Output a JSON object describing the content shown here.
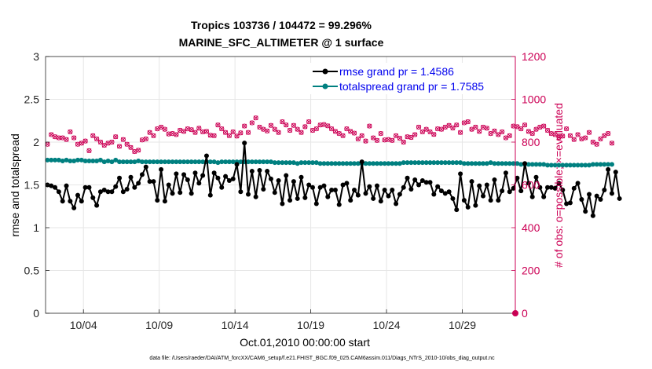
{
  "figure": {
    "title_line1": "Tropics 103736 / 104472 = 99.296%",
    "title_line2": "MARINE_SFC_ALTIMETER @ 1 surface",
    "footnote": "data file: /Users/raeder/DAI/ATM_forcXX/CAM6_setup/f.e21.FHIST_BGC.f09_025.CAM6assim.011/Diags_NTrS_2010-10/obs_diag_output.nc"
  },
  "chart_data": {
    "type": "line",
    "xlabel": "Oct.01,2010 00:00:00 start",
    "ylabel_left": "rmse and totalspread",
    "ylabel_right": "# of obs: o=possible; ×=evaluated",
    "xlim": [
      1,
      32
    ],
    "ylim_left": [
      0,
      3
    ],
    "ylim_right": [
      0,
      1200
    ],
    "x_ticks": [
      3.5,
      8.5,
      13.5,
      18.5,
      23.5,
      28.5
    ],
    "x_tick_labels": [
      "10/04",
      "10/09",
      "10/14",
      "10/19",
      "10/24",
      "10/29"
    ],
    "y_ticks_left": [
      0,
      0.5,
      1,
      1.5,
      2,
      2.5,
      3
    ],
    "y_tick_labels_left": [
      "0",
      "0.5",
      "1",
      "1.5",
      "2",
      "2.5",
      "3"
    ],
    "y_ticks_right": [
      0,
      200,
      400,
      600,
      800,
      1000,
      1200
    ],
    "y_tick_labels_right": [
      "0",
      "200",
      "400",
      "600",
      "800",
      "1000",
      "1200"
    ],
    "grid": true,
    "legend_position": "top-right",
    "colors": {
      "rmse": "#000000",
      "totalspread": "#008080",
      "obs": "#cc0055",
      "grid": "#e6e6e6"
    },
    "series": [
      {
        "name": "rmse grand pr = 1.4586",
        "axis": "left",
        "x_start": 1.125,
        "x_step": 0.25,
        "values": [
          1.5,
          1.49,
          1.47,
          1.42,
          1.31,
          1.49,
          1.31,
          1.23,
          1.38,
          1.31,
          1.47,
          1.47,
          1.35,
          1.26,
          1.42,
          1.44,
          1.42,
          1.42,
          1.48,
          1.58,
          1.42,
          1.45,
          1.59,
          1.47,
          1.52,
          1.62,
          1.71,
          1.54,
          1.54,
          1.32,
          1.68,
          1.31,
          1.5,
          1.4,
          1.63,
          1.41,
          1.62,
          1.56,
          1.4,
          1.64,
          1.52,
          1.61,
          1.84,
          1.38,
          1.64,
          1.58,
          1.47,
          1.6,
          1.55,
          1.57,
          1.74,
          1.42,
          1.99,
          1.39,
          1.66,
          1.36,
          1.67,
          1.45,
          1.66,
          1.57,
          1.41,
          1.55,
          1.28,
          1.61,
          1.32,
          1.54,
          1.34,
          1.59,
          1.35,
          1.5,
          1.47,
          1.28,
          1.47,
          1.49,
          1.36,
          1.44,
          1.44,
          1.27,
          1.5,
          1.52,
          1.32,
          1.44,
          1.38,
          1.77,
          1.4,
          1.48,
          1.34,
          1.49,
          1.31,
          1.44,
          1.37,
          1.44,
          1.28,
          1.39,
          1.47,
          1.58,
          1.45,
          1.56,
          1.5,
          1.55,
          1.53,
          1.53,
          1.39,
          1.48,
          1.43,
          1.4,
          1.42,
          1.34,
          1.21,
          1.63,
          1.32,
          1.24,
          1.54,
          1.26,
          1.49,
          1.37,
          1.5,
          1.32,
          1.56,
          1.32,
          1.43,
          1.64,
          1.42,
          1.46,
          1.58,
          1.43,
          1.75,
          1.52,
          1.36,
          1.59,
          1.47,
          1.36,
          1.47,
          1.47,
          1.46,
          1.52,
          1.44,
          1.28,
          1.29,
          1.46,
          1.52,
          1.33,
          1.19,
          1.39,
          1.14,
          1.37,
          1.33,
          1.44,
          1.68,
          1.4,
          1.65,
          1.34
        ]
      },
      {
        "name": "totalspread grand pr = 1.7585",
        "axis": "left",
        "x_start": 1.125,
        "x_step": 0.25,
        "values": [
          1.79,
          1.79,
          1.79,
          1.79,
          1.78,
          1.79,
          1.78,
          1.78,
          1.79,
          1.79,
          1.78,
          1.78,
          1.78,
          1.78,
          1.79,
          1.77,
          1.78,
          1.77,
          1.79,
          1.77,
          1.77,
          1.77,
          1.77,
          1.77,
          1.78,
          1.77,
          1.77,
          1.77,
          1.77,
          1.77,
          1.77,
          1.77,
          1.77,
          1.77,
          1.77,
          1.77,
          1.77,
          1.77,
          1.77,
          1.77,
          1.77,
          1.77,
          1.77,
          1.77,
          1.77,
          1.76,
          1.77,
          1.77,
          1.77,
          1.77,
          1.77,
          1.77,
          1.77,
          1.77,
          1.77,
          1.77,
          1.77,
          1.77,
          1.77,
          1.77,
          1.76,
          1.76,
          1.76,
          1.76,
          1.76,
          1.76,
          1.75,
          1.76,
          1.76,
          1.76,
          1.76,
          1.76,
          1.75,
          1.75,
          1.75,
          1.75,
          1.75,
          1.75,
          1.75,
          1.75,
          1.75,
          1.75,
          1.75,
          1.75,
          1.75,
          1.75,
          1.75,
          1.75,
          1.75,
          1.75,
          1.75,
          1.75,
          1.75,
          1.75,
          1.76,
          1.76,
          1.76,
          1.76,
          1.76,
          1.76,
          1.76,
          1.76,
          1.76,
          1.76,
          1.76,
          1.76,
          1.76,
          1.76,
          1.76,
          1.76,
          1.75,
          1.75,
          1.75,
          1.75,
          1.75,
          1.75,
          1.75,
          1.76,
          1.75,
          1.75,
          1.75,
          1.75,
          1.75,
          1.75,
          1.75,
          1.74,
          1.74,
          1.74,
          1.74,
          1.74,
          1.74,
          1.74,
          1.73,
          1.73,
          1.73,
          1.73,
          1.73,
          1.73,
          1.73,
          1.73,
          1.73,
          1.73,
          1.73,
          1.73,
          1.74,
          1.74,
          1.74,
          1.74,
          1.74,
          1.74
        ]
      },
      {
        "name": "# of obs (possible / evaluated)",
        "axis": "right",
        "x_start": 1.125,
        "x_step": 0.25,
        "values": [
          790,
          835,
          825,
          820,
          820,
          812,
          848,
          820,
          790,
          795,
          805,
          760,
          830,
          815,
          800,
          785,
          795,
          800,
          825,
          780,
          812,
          790,
          775,
          756,
          762,
          810,
          815,
          845,
          830,
          862,
          870,
          860,
          838,
          840,
          835,
          855,
          850,
          862,
          858,
          845,
          865,
          848,
          850,
          832,
          830,
          880,
          862,
          845,
          830,
          848,
          828,
          843,
          875,
          845,
          890,
          913,
          870,
          860,
          852,
          878,
          860,
          845,
          895,
          880,
          855,
          878,
          860,
          845,
          872,
          895,
          855,
          862,
          880,
          882,
          876,
          862,
          850,
          840,
          830,
          862,
          850,
          842,
          815,
          830,
          805,
          875,
          820,
          808,
          840,
          810,
          812,
          808,
          830,
          818,
          800,
          825,
          822,
          835,
          870,
          848,
          860,
          848,
          836,
          862,
          860,
          870,
          878,
          866,
          880,
          845,
          890,
          895,
          860,
          870,
          850,
          870,
          865,
          840,
          852,
          835,
          848,
          820,
          830,
          875,
          872,
          862,
          880,
          850,
          840,
          860,
          870,
          875,
          855,
          840,
          835,
          822,
          828,
          862,
          830,
          812,
          835,
          815,
          820,
          845,
          800,
          790,
          815,
          830,
          840,
          795
        ]
      }
    ],
    "extra_marker": {
      "x": 32,
      "value": 0,
      "axis": "right"
    }
  }
}
